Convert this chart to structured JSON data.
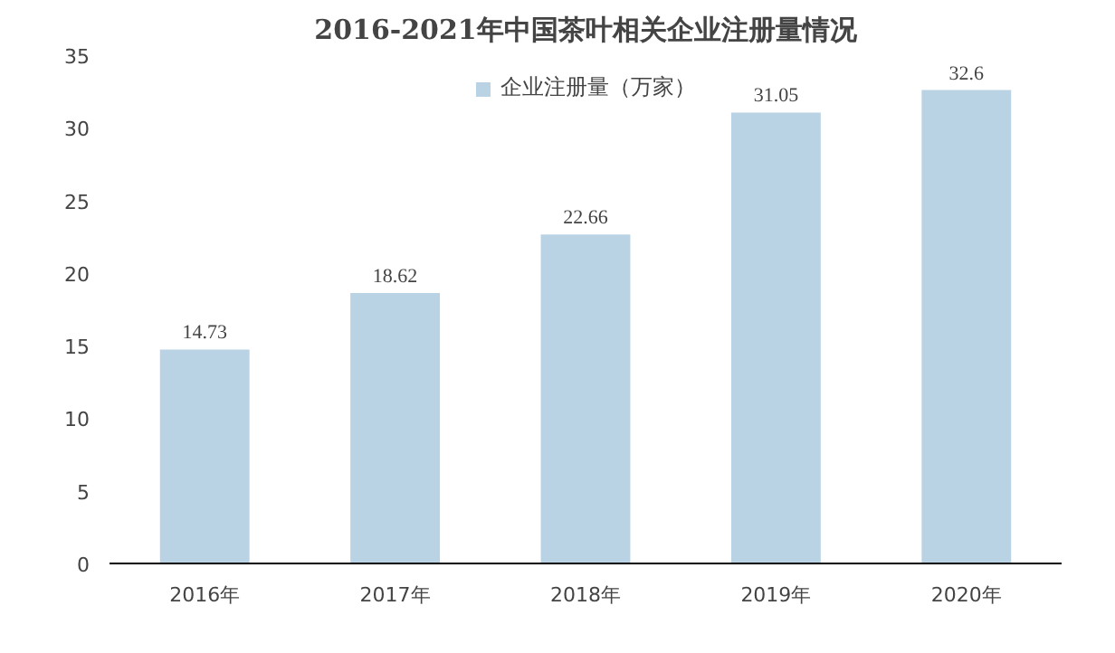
{
  "chart_data": {
    "type": "bar",
    "title": "2016-2021年中国茶叶相关企业注册量情况",
    "categories": [
      "2016年",
      "2017年",
      "2018年",
      "2019年",
      "2020年"
    ],
    "series": [
      {
        "name": "企业注册量（万家）",
        "color": "#b9d3e4",
        "values": [
          14.73,
          18.62,
          22.66,
          31.05,
          32.6
        ]
      }
    ],
    "ylim": [
      0,
      35
    ],
    "yticks": [
      0,
      5,
      10,
      15,
      20,
      25,
      30,
      35
    ],
    "grid": false,
    "legend": "top",
    "data_labels": true
  }
}
